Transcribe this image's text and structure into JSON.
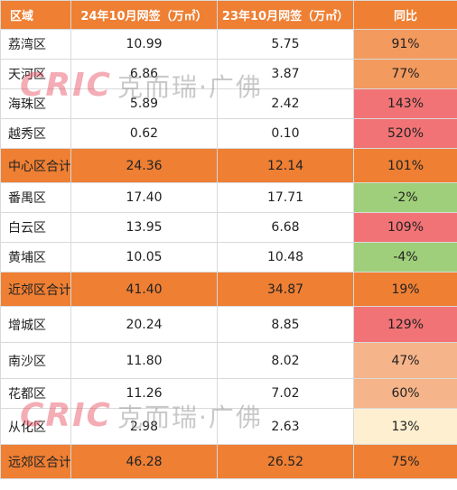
{
  "headers": [
    "区域",
    "24年10月网签（万㎡）",
    "23年10月网签（万㎡）",
    "同比"
  ],
  "rows": [
    {
      "name": "荔湾区",
      "v24": "10.99",
      "v23": "5.75",
      "yoy": "91%",
      "color": "#f39a5e",
      "kind": "row"
    },
    {
      "name": "天河区",
      "v24": "6.86",
      "v23": "3.87",
      "yoy": "77%",
      "color": "#f39a5e",
      "kind": "row"
    },
    {
      "name": "海珠区",
      "v24": "5.89",
      "v23": "2.42",
      "yoy": "143%",
      "color": "#f27375",
      "kind": "row"
    },
    {
      "name": "越秀区",
      "v24": "0.62",
      "v23": "0.10",
      "yoy": "520%",
      "color": "#f27375",
      "kind": "row"
    },
    {
      "name": "中心区合计",
      "v24": "24.36",
      "v23": "12.14",
      "yoy": "101%",
      "color": "#ee7f33",
      "kind": "subtotal"
    },
    {
      "name": "番禺区",
      "v24": "17.40",
      "v23": "17.71",
      "yoy": "-2%",
      "color": "#9fcf7a",
      "kind": "row"
    },
    {
      "name": "白云区",
      "v24": "13.95",
      "v23": "6.68",
      "yoy": "109%",
      "color": "#f27375",
      "kind": "row"
    },
    {
      "name": "黄埔区",
      "v24": "10.05",
      "v23": "10.48",
      "yoy": "-4%",
      "color": "#9fcf7a",
      "kind": "row"
    },
    {
      "name": "近郊区合计",
      "v24": "41.40",
      "v23": "34.87",
      "yoy": "19%",
      "color": "#ee7f33",
      "kind": "subtotal"
    },
    {
      "name": "增城区",
      "v24": "20.24",
      "v23": "8.85",
      "yoy": "129%",
      "color": "#f27375",
      "kind": "row"
    },
    {
      "name": "南沙区",
      "v24": "11.80",
      "v23": "8.02",
      "yoy": "47%",
      "color": "#f6b48a",
      "kind": "row"
    },
    {
      "name": "花都区",
      "v24": "11.26",
      "v23": "7.02",
      "yoy": "60%",
      "color": "#f6b48a",
      "kind": "row"
    },
    {
      "name": "从化区",
      "v24": "2.98",
      "v23": "2.63",
      "yoy": "13%",
      "color": "#fdefcf",
      "kind": "row"
    },
    {
      "name": "远郊区合计",
      "v24": "46.28",
      "v23": "26.52",
      "yoy": "75%",
      "color": "#ee7f33",
      "kind": "subtotal"
    }
  ],
  "watermark": {
    "logo": "CRIC",
    "text": "克而瑞·广佛"
  }
}
